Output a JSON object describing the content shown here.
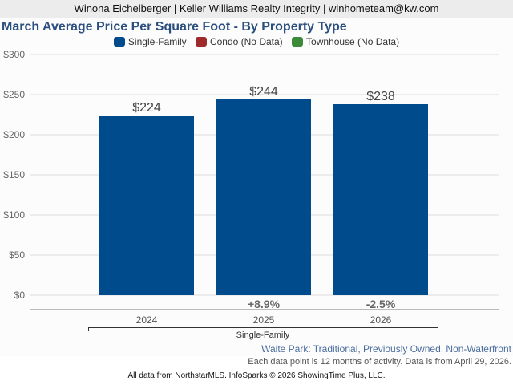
{
  "header": {
    "text": "Winona Eichelberger | Keller Williams Realty Integrity | winhometeam@kw.com"
  },
  "legend": [
    {
      "label": "Single-Family",
      "color": "#004b8c"
    },
    {
      "label": "Condo (No Data)",
      "color": "#9e2a2b"
    },
    {
      "label": "Townhouse (No Data)",
      "color": "#3c8a3a"
    }
  ],
  "subtitle": "Waite Park: Traditional, Previously Owned, Non-Waterfront",
  "note": "Each data point is 12 months of activity. Data is from April 29, 2026.",
  "footer": "All data from NorthstarMLS. InfoSparks © 2026 ShowingTime Plus, LLC.",
  "chart_data": {
    "type": "bar",
    "title": "March Average Price Per Square Foot - By Property Type",
    "xlabel": "",
    "ylabel": "",
    "group_label": "Single-Family",
    "categories": [
      "2024",
      "2025",
      "2026"
    ],
    "series": [
      {
        "name": "Single-Family",
        "color": "#004b8c",
        "values": [
          224,
          244,
          238
        ],
        "value_labels": [
          "$224",
          "$244",
          "$238"
        ],
        "change_labels": [
          "",
          "+8.9%",
          "-2.5%"
        ]
      }
    ],
    "ylim": [
      0,
      300
    ],
    "yticks": [
      0,
      50,
      100,
      150,
      200,
      250,
      300
    ],
    "ytick_labels": [
      "$0",
      "$50",
      "$100",
      "$150",
      "$200",
      "$250",
      "$300"
    ],
    "grid": true,
    "legend_position": "top-center"
  }
}
